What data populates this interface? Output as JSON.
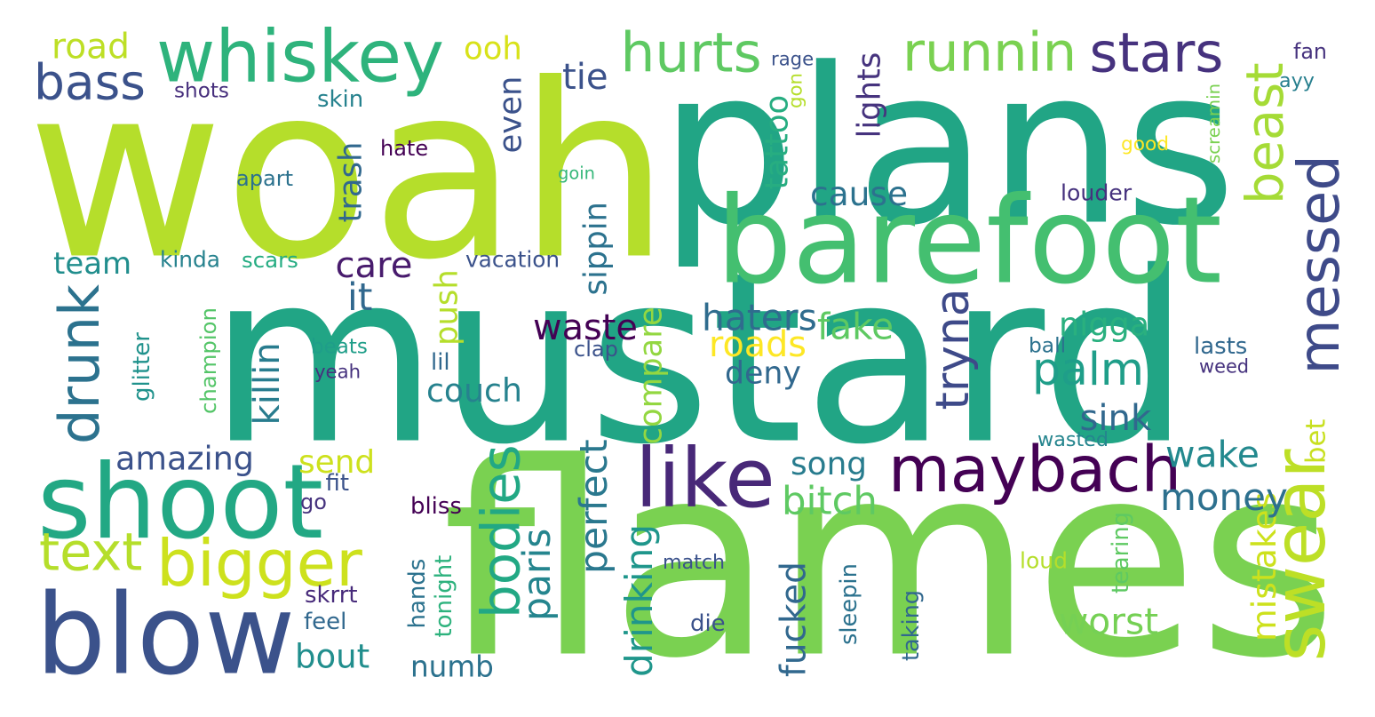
{
  "background": "#ffffff",
  "palette": {
    "lime": "#b5de2b",
    "yellow": "#cde11d",
    "light_green": "#7ad151",
    "green": "#5ec962",
    "sea_green": "#44bf70",
    "teal_green": "#22a884",
    "teal": "#1f9e89",
    "teal_dark": "#26828e",
    "steel_blue": "#31688e",
    "slate_blue": "#3b528b",
    "indigo": "#443983",
    "purple": "#482878",
    "deep_purple": "#440154"
  },
  "words": [
    {
      "text": "mustard",
      "color": "#21a585"
    },
    {
      "text": "woah",
      "color": "#b5de2b"
    },
    {
      "text": "plans",
      "color": "#21a585"
    },
    {
      "text": "flames",
      "color": "#7ad151"
    },
    {
      "text": "barefoot",
      "color": "#44bf70"
    },
    {
      "text": "shoot",
      "color": "#22a884"
    },
    {
      "text": "blow",
      "color": "#3b528b"
    },
    {
      "text": "whiskey",
      "color": "#2eb37c"
    },
    {
      "text": "maybach",
      "color": "#440154"
    },
    {
      "text": "like",
      "color": "#482878"
    },
    {
      "text": "swear",
      "color": "#bddf26"
    },
    {
      "text": "messed",
      "color": "#3e4a89"
    },
    {
      "text": "bigger",
      "color": "#cde11d"
    },
    {
      "text": "drunk",
      "color": "#2c728e"
    },
    {
      "text": "bodies",
      "color": "#22a884"
    },
    {
      "text": "runnin",
      "color": "#7ad151"
    },
    {
      "text": "hurts",
      "color": "#5ec962"
    },
    {
      "text": "stars",
      "color": "#46327e"
    },
    {
      "text": "bass",
      "color": "#3b528b"
    },
    {
      "text": "beast",
      "color": "#a5db36"
    },
    {
      "text": "palm",
      "color": "#1f9e89"
    },
    {
      "text": "tryna",
      "color": "#3e4a89"
    },
    {
      "text": "text",
      "color": "#b5de2b"
    },
    {
      "text": "killin",
      "color": "#287c8e"
    },
    {
      "text": "couch",
      "color": "#26828e"
    },
    {
      "text": "amazing",
      "color": "#3b528b"
    },
    {
      "text": "fucked",
      "color": "#31688e"
    },
    {
      "text": "perfect",
      "color": "#2a788e"
    },
    {
      "text": "drinking",
      "color": "#1f968b"
    },
    {
      "text": "paris",
      "color": "#25858e"
    },
    {
      "text": "worst",
      "color": "#75d054"
    },
    {
      "text": "mistakes",
      "color": "#cde11d"
    },
    {
      "text": "money",
      "color": "#2d708e"
    },
    {
      "text": "wake",
      "color": "#23898e"
    },
    {
      "text": "song",
      "color": "#287c8e"
    },
    {
      "text": "bitch",
      "color": "#5ec962"
    },
    {
      "text": "send",
      "color": "#cde11d"
    },
    {
      "text": "numb",
      "color": "#2c728e"
    },
    {
      "text": "bout",
      "color": "#218e8d"
    },
    {
      "text": "waste",
      "color": "#440154"
    },
    {
      "text": "haters",
      "color": "#2f6c8e"
    },
    {
      "text": "deny",
      "color": "#31688e"
    },
    {
      "text": "roads",
      "color": "#fde725"
    },
    {
      "text": "fake",
      "color": "#5ec962"
    },
    {
      "text": "nigga",
      "color": "#2ab07f"
    },
    {
      "text": "sink",
      "color": "#31688e"
    },
    {
      "text": "compare",
      "color": "#93d741"
    },
    {
      "text": "push",
      "color": "#b5de2b"
    },
    {
      "text": "it",
      "color": "#31688e"
    },
    {
      "text": "care",
      "color": "#481b6d"
    },
    {
      "text": "team",
      "color": "#218e8d"
    },
    {
      "text": "sippin",
      "color": "#2c728e"
    },
    {
      "text": "trash",
      "color": "#31688e"
    },
    {
      "text": "even",
      "color": "#3b528b"
    },
    {
      "text": "tie",
      "color": "#3b528b"
    },
    {
      "text": "cause",
      "color": "#2c728e"
    },
    {
      "text": "tattoo",
      "color": "#27ad81"
    },
    {
      "text": "lights",
      "color": "#46337e"
    },
    {
      "text": "road",
      "color": "#bddf26"
    },
    {
      "text": "ooh",
      "color": "#d8e219"
    },
    {
      "text": "bet",
      "color": "#c8e020"
    },
    {
      "text": "shots",
      "color": "#472f7d"
    },
    {
      "text": "rage",
      "color": "#3b528b"
    },
    {
      "text": "gon",
      "color": "#b5de2b"
    },
    {
      "text": "fan",
      "color": "#46327e"
    },
    {
      "text": "ayy",
      "color": "#277f8e"
    },
    {
      "text": "skin",
      "color": "#26828e"
    },
    {
      "text": "screamin",
      "color": "#7ad151"
    },
    {
      "text": "good",
      "color": "#fde725"
    },
    {
      "text": "hate",
      "color": "#440154"
    },
    {
      "text": "apart",
      "color": "#2c728e"
    },
    {
      "text": "goin",
      "color": "#35b779"
    },
    {
      "text": "louder",
      "color": "#46327e"
    },
    {
      "text": "kinda",
      "color": "#26828e"
    },
    {
      "text": "scars",
      "color": "#25ac82"
    },
    {
      "text": "vacation",
      "color": "#3b528b"
    },
    {
      "text": "glitter",
      "color": "#20928c"
    },
    {
      "text": "champion",
      "color": "#54c568"
    },
    {
      "text": "beats",
      "color": "#1f9e89"
    },
    {
      "text": "yeah",
      "color": "#46327e"
    },
    {
      "text": "lil",
      "color": "#31688e"
    },
    {
      "text": "clap",
      "color": "#3b528b"
    },
    {
      "text": "ball",
      "color": "#2c728e"
    },
    {
      "text": "lasts",
      "color": "#31688e"
    },
    {
      "text": "weed",
      "color": "#46327e"
    },
    {
      "text": "wasted",
      "color": "#25858e"
    },
    {
      "text": "fit",
      "color": "#3b528b"
    },
    {
      "text": "go",
      "color": "#46327e"
    },
    {
      "text": "bliss",
      "color": "#440154"
    },
    {
      "text": "skrrt",
      "color": "#472a7a"
    },
    {
      "text": "feel",
      "color": "#31688e"
    },
    {
      "text": "hands",
      "color": "#2c728e"
    },
    {
      "text": "tonight",
      "color": "#2db27d"
    },
    {
      "text": "match",
      "color": "#3b528b"
    },
    {
      "text": "die",
      "color": "#3b528b"
    },
    {
      "text": "sleepin",
      "color": "#2c728e"
    },
    {
      "text": "taking",
      "color": "#31688e"
    },
    {
      "text": "tearing",
      "color": "#5ec962"
    },
    {
      "text": "loud",
      "color": "#b5de2b"
    }
  ]
}
